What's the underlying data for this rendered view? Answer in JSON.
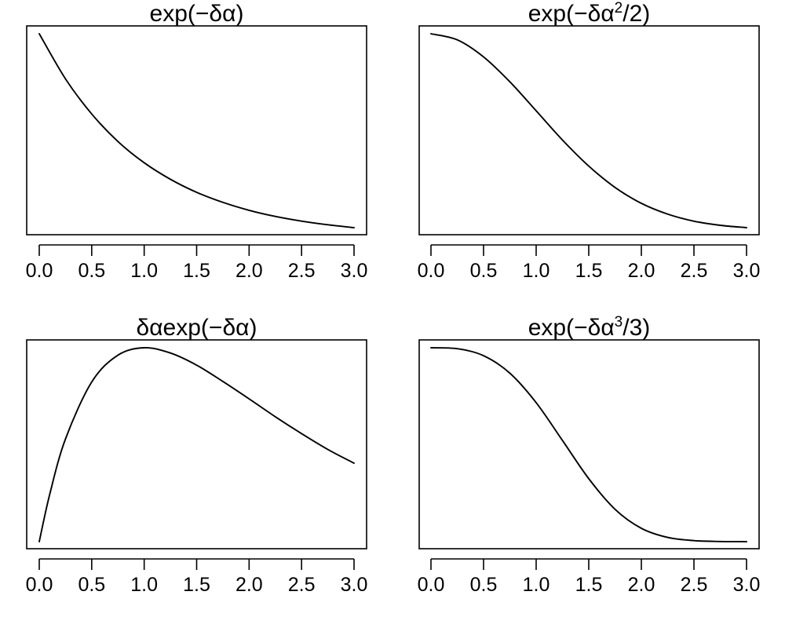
{
  "chart_data": [
    {
      "type": "line",
      "title": "exp(−δα)",
      "title_parts": {
        "base": "exp(−δα)",
        "superscript": "",
        "tail": ""
      },
      "x_tick_labels": [
        "0.0",
        "0.5",
        "1.0",
        "1.5",
        "2.0",
        "2.5",
        "3.0"
      ],
      "x_ticks": [
        0,
        0.5,
        1,
        1.5,
        2,
        2.5,
        3
      ],
      "xlim": [
        0,
        3
      ],
      "ylim": [
        0.05,
        1
      ],
      "y_axis_shown": false,
      "grid": false,
      "line_color": "#000000",
      "series": [
        {
          "x": [
            0,
            0.25,
            0.5,
            0.75,
            1,
            1.25,
            1.5,
            1.75,
            2,
            2.25,
            2.5,
            2.75,
            3
          ],
          "y": [
            1.0,
            0.779,
            0.607,
            0.472,
            0.368,
            0.287,
            0.223,
            0.174,
            0.135,
            0.105,
            0.082,
            0.064,
            0.05
          ]
        }
      ]
    },
    {
      "type": "line",
      "title": "exp(−δα2/2)",
      "title_parts": {
        "base": "exp(−δα",
        "superscript": "2",
        "tail": "/2)"
      },
      "x_tick_labels": [
        "0.0",
        "0.5",
        "1.0",
        "1.5",
        "2.0",
        "2.5",
        "3.0"
      ],
      "x_ticks": [
        0,
        0.5,
        1,
        1.5,
        2,
        2.5,
        3
      ],
      "xlim": [
        0,
        3
      ],
      "ylim": [
        0.011,
        1
      ],
      "y_axis_shown": false,
      "grid": false,
      "line_color": "#000000",
      "series": [
        {
          "x": [
            0,
            0.25,
            0.5,
            0.75,
            1,
            1.25,
            1.5,
            1.75,
            2,
            2.25,
            2.5,
            2.75,
            3
          ],
          "y": [
            1.0,
            0.969,
            0.882,
            0.755,
            0.607,
            0.458,
            0.325,
            0.216,
            0.135,
            0.08,
            0.044,
            0.023,
            0.011
          ]
        }
      ]
    },
    {
      "type": "line",
      "title": "δαexp(−δα)",
      "title_parts": {
        "base": "δαexp(−δα)",
        "superscript": "",
        "tail": ""
      },
      "x_tick_labels": [
        "0.0",
        "0.5",
        "1.0",
        "1.5",
        "2.0",
        "2.5",
        "3.0"
      ],
      "x_ticks": [
        0,
        0.5,
        1,
        1.5,
        2,
        2.5,
        3
      ],
      "xlim": [
        0,
        3
      ],
      "ylim": [
        0,
        0.368
      ],
      "y_axis_shown": false,
      "grid": false,
      "line_color": "#000000",
      "series": [
        {
          "x": [
            0,
            0.1,
            0.25,
            0.5,
            0.75,
            1,
            1.25,
            1.5,
            1.75,
            2,
            2.25,
            2.5,
            2.75,
            3
          ],
          "y": [
            0.0,
            0.09,
            0.195,
            0.303,
            0.354,
            0.368,
            0.358,
            0.335,
            0.304,
            0.271,
            0.237,
            0.205,
            0.175,
            0.149
          ]
        }
      ]
    },
    {
      "type": "line",
      "title": "exp(−δα3/3)",
      "title_parts": {
        "base": "exp(−δα",
        "superscript": "3",
        "tail": "/3)"
      },
      "x_tick_labels": [
        "0.0",
        "0.5",
        "1.0",
        "1.5",
        "2.0",
        "2.5",
        "3.0"
      ],
      "x_ticks": [
        0,
        0.5,
        1,
        1.5,
        2,
        2.5,
        3
      ],
      "xlim": [
        0,
        3
      ],
      "ylim": [
        0.0001,
        1
      ],
      "y_axis_shown": false,
      "grid": false,
      "line_color": "#000000",
      "series": [
        {
          "x": [
            0,
            0.25,
            0.5,
            0.75,
            1,
            1.25,
            1.5,
            1.75,
            2,
            2.25,
            2.5,
            2.75,
            3
          ],
          "y": [
            1.0,
            0.995,
            0.959,
            0.869,
            0.717,
            0.522,
            0.325,
            0.167,
            0.069,
            0.022,
            0.0055,
            0.001,
            0.0001
          ]
        }
      ]
    }
  ]
}
